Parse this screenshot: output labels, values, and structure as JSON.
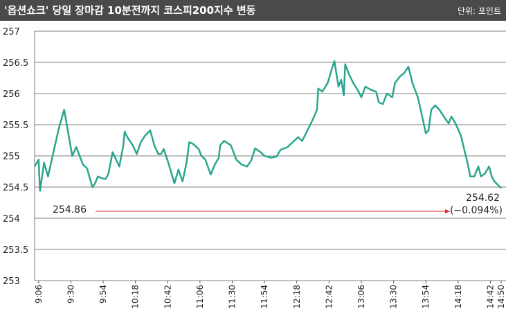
{
  "chart_data": {
    "type": "line",
    "title": "'옵션쇼크' 당일 장마감 10분전까지 코스피200지수 변동",
    "unit": "단위: 포인트",
    "x": [
      543,
      546,
      547,
      550,
      553,
      557,
      561,
      565,
      571,
      574,
      579,
      582,
      586,
      588,
      590,
      593,
      596,
      598,
      601,
      604,
      606,
      609,
      610,
      612,
      616,
      619,
      622,
      625,
      629,
      632,
      635,
      637,
      639,
      642,
      647,
      650,
      653,
      656,
      658,
      661,
      665,
      667,
      670,
      674,
      677,
      680,
      681,
      684,
      689,
      693,
      697,
      701,
      704,
      707,
      711,
      714,
      719,
      723,
      726,
      731,
      735,
      739,
      742,
      746,
      750,
      753,
      754,
      757,
      761,
      764,
      766,
      769,
      771,
      773,
      774,
      777,
      780,
      784,
      786,
      789,
      793,
      797,
      799,
      802,
      805,
      809,
      811,
      815,
      818,
      821,
      824,
      828,
      832,
      834,
      836,
      838,
      841,
      844,
      848,
      851,
      853,
      856,
      860,
      863,
      865,
      867,
      870,
      873,
      875,
      878,
      881,
      883,
      885,
      890
    ],
    "series": [
      {
        "name": "코스피200",
        "color": "#2aa58e",
        "values": [
          254.83,
          254.94,
          254.44,
          254.89,
          254.67,
          255.06,
          255.44,
          255.74,
          255.0,
          255.14,
          254.86,
          254.8,
          254.5,
          254.56,
          254.67,
          254.64,
          254.63,
          254.72,
          255.06,
          254.92,
          254.83,
          255.17,
          255.39,
          255.3,
          255.17,
          255.03,
          255.22,
          255.32,
          255.41,
          255.17,
          255.03,
          255.03,
          255.11,
          254.92,
          254.56,
          254.78,
          254.59,
          254.89,
          255.22,
          255.19,
          255.11,
          255.0,
          254.94,
          254.7,
          254.86,
          254.97,
          255.17,
          255.24,
          255.17,
          254.94,
          254.86,
          254.83,
          254.92,
          255.12,
          255.06,
          255.0,
          254.97,
          254.99,
          255.1,
          255.14,
          255.22,
          255.3,
          255.24,
          255.41,
          255.59,
          255.74,
          256.08,
          256.03,
          256.17,
          256.39,
          256.52,
          256.11,
          256.22,
          255.97,
          256.47,
          256.3,
          256.17,
          256.03,
          255.94,
          256.11,
          256.06,
          256.03,
          255.86,
          255.83,
          256.0,
          255.94,
          256.17,
          256.28,
          256.33,
          256.43,
          256.17,
          255.94,
          255.56,
          255.36,
          255.41,
          255.74,
          255.81,
          255.74,
          255.61,
          255.52,
          255.63,
          255.52,
          255.33,
          255.06,
          254.89,
          254.67,
          254.67,
          254.83,
          254.67,
          254.72,
          254.83,
          254.67,
          254.59,
          254.48
        ]
      }
    ],
    "xlim": [
      543,
      890
    ],
    "xticks": [
      {
        "value": 546,
        "label": "9:06"
      },
      {
        "value": 570,
        "label": "9:30"
      },
      {
        "value": 594,
        "label": "9:54"
      },
      {
        "value": 618,
        "label": "10:18"
      },
      {
        "value": 642,
        "label": "10:42"
      },
      {
        "value": 666,
        "label": "11:06"
      },
      {
        "value": 690,
        "label": "11:30"
      },
      {
        "value": 714,
        "label": "11:54"
      },
      {
        "value": 738,
        "label": "12:18"
      },
      {
        "value": 762,
        "label": "12:42"
      },
      {
        "value": 786,
        "label": "13:06"
      },
      {
        "value": 810,
        "label": "13:30"
      },
      {
        "value": 834,
        "label": "13:54"
      },
      {
        "value": 858,
        "label": "14:18"
      },
      {
        "value": 882,
        "label": "14:42"
      },
      {
        "value": 890,
        "label": "14:50"
      }
    ],
    "ylim": [
      253,
      257
    ],
    "yticks": [
      253,
      253.5,
      254,
      254.5,
      255,
      255.5,
      256,
      256.5,
      257
    ],
    "grid": true,
    "annotations": [
      {
        "text": "254.86"
      },
      {
        "text": "254.62"
      },
      {
        "text": "(−0.094%)"
      }
    ]
  }
}
